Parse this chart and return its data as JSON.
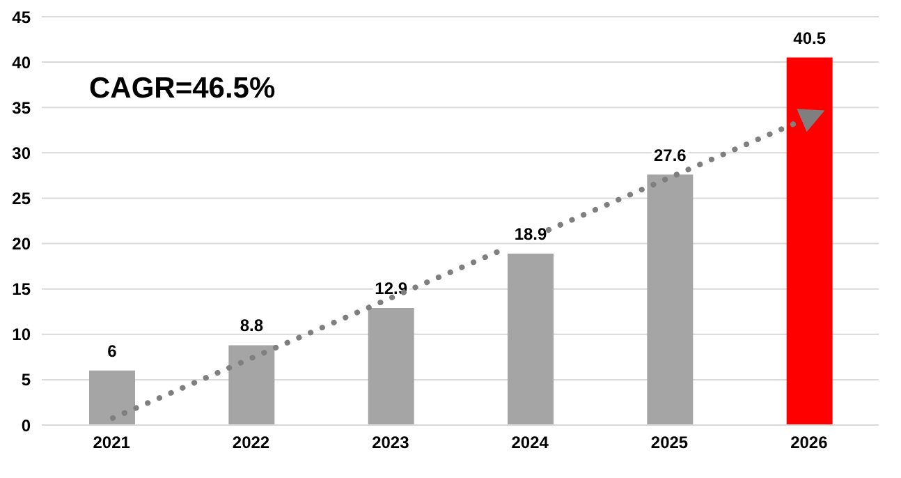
{
  "chart_data": {
    "type": "bar",
    "categories": [
      "2021",
      "2022",
      "2023",
      "2024",
      "2025",
      "2026"
    ],
    "values": [
      6,
      8.8,
      12.9,
      18.9,
      27.6,
      40.5
    ],
    "colors": [
      "#a5a5a5",
      "#a5a5a5",
      "#a5a5a5",
      "#a5a5a5",
      "#a5a5a5",
      "#ff0000"
    ],
    "ylim": [
      0,
      45
    ],
    "yticks": [
      0,
      5,
      10,
      15,
      20,
      25,
      30,
      35,
      40,
      45
    ],
    "grid": "y",
    "data_labels": true,
    "annotations": [
      "CAGR=46.5%"
    ]
  }
}
